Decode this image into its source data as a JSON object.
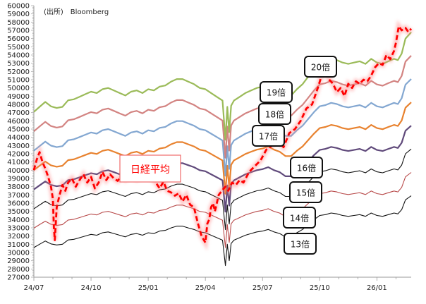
{
  "chart_data": {
    "type": "line",
    "title": "",
    "source_note": "(出所)　Bloomberg",
    "xlabel": "",
    "ylabel": "",
    "ylim": [
      27000,
      60000
    ],
    "ytick_step": 1000,
    "yticks": [
      "27000",
      "28000",
      "29000",
      "30000",
      "31000",
      "32000",
      "33000",
      "34000",
      "35000",
      "36000",
      "37000",
      "38000",
      "39000",
      "40000",
      "41000",
      "42000",
      "43000",
      "44000",
      "45000",
      "46000",
      "47000",
      "48000",
      "49000",
      "50000",
      "51000",
      "52000",
      "53000",
      "54000",
      "55000",
      "56000",
      "57000",
      "58000",
      "59000",
      "60000"
    ],
    "x_unit": "months since 2024-07",
    "xlim": [
      0,
      19.8
    ],
    "xticks": [
      {
        "m": 0,
        "label": "24/07"
      },
      {
        "m": 3,
        "label": "24/10"
      },
      {
        "m": 6,
        "label": "25/01"
      },
      {
        "m": 9,
        "label": "25/04"
      },
      {
        "m": 12,
        "label": "25/07"
      },
      {
        "m": 15,
        "label": "25/10"
      },
      {
        "m": 18,
        "label": "26/01"
      }
    ],
    "grid": false,
    "per_base": {
      "name": "EPS (implied by 13x band)",
      "x": [
        0,
        0.3,
        0.6,
        0.9,
        1.2,
        1.5,
        1.8,
        2.1,
        2.4,
        2.7,
        3.0,
        3.3,
        3.6,
        3.9,
        4.2,
        4.5,
        4.8,
        5.1,
        5.4,
        5.7,
        6.0,
        6.3,
        6.6,
        6.9,
        7.2,
        7.5,
        7.8,
        8.1,
        8.4,
        8.7,
        9.0,
        9.3,
        9.6,
        9.9,
        10.05,
        10.15,
        10.25,
        10.35,
        10.5,
        10.8,
        11.1,
        11.4,
        11.7,
        12.0,
        12.3,
        12.6,
        12.9,
        13.2,
        13.5,
        13.8,
        14.1,
        14.4,
        14.7,
        15.0,
        15.3,
        15.6,
        15.9,
        16.2,
        16.5,
        16.8,
        17.1,
        17.4,
        17.7,
        18.0,
        18.3,
        18.6,
        18.9,
        19.1,
        19.3,
        19.5,
        19.8
      ],
      "values": [
        2354,
        2385,
        2415,
        2388,
        2378,
        2385,
        2425,
        2431,
        2446,
        2462,
        2477,
        2469,
        2492,
        2500,
        2485,
        2469,
        2454,
        2477,
        2485,
        2469,
        2492,
        2485,
        2508,
        2515,
        2538,
        2554,
        2554,
        2538,
        2523,
        2500,
        2492,
        2469,
        2446,
        2423,
        2185,
        2385,
        2231,
        2392,
        2423,
        2446,
        2469,
        2485,
        2500,
        2508,
        2523,
        2500,
        2485,
        2454,
        2454,
        2492,
        2523,
        2569,
        2615,
        2654,
        2662,
        2677,
        2669,
        2654,
        2646,
        2654,
        2662,
        2646,
        2677,
        2654,
        2646,
        2662,
        2677,
        2669,
        2708,
        2800,
        2838
      ]
    },
    "series": [
      {
        "name": "20倍",
        "multiple": 20,
        "color": "#9bbb59",
        "label": "20倍"
      },
      {
        "name": "19倍",
        "multiple": 19,
        "color": "#c0504d",
        "label": "19倍",
        "opacity": 0.7
      },
      {
        "name": "18倍",
        "multiple": 18,
        "color": "#4f81bd",
        "label": "18倍",
        "opacity": 0.7
      },
      {
        "name": "17倍",
        "multiple": 17,
        "color": "#e46c0a",
        "label": "17倍",
        "opacity": 0.85
      },
      {
        "name": "16倍",
        "multiple": 16,
        "color": "#604a7b",
        "label": "16倍"
      },
      {
        "name": "15倍",
        "multiple": 15,
        "color": "#111111",
        "label": "15倍"
      },
      {
        "name": "14倍",
        "multiple": 14,
        "color": "#b84a4a",
        "label": "14倍"
      },
      {
        "name": "13倍",
        "multiple": 13,
        "color": "#111111",
        "label": "13倍"
      }
    ],
    "nikkei": {
      "name": "日経平均",
      "label": "日経平均",
      "color": "#ff0000",
      "x": [
        0,
        0.15,
        0.3,
        0.45,
        0.6,
        0.75,
        0.9,
        1.0,
        1.05,
        1.1,
        1.2,
        1.35,
        1.5,
        1.65,
        1.8,
        2.0,
        2.2,
        2.4,
        2.6,
        2.8,
        3.0,
        3.2,
        3.4,
        3.6,
        3.8,
        4.0,
        4.2,
        4.4,
        4.6,
        4.8,
        5.0,
        5.2,
        5.4,
        5.6,
        5.8,
        6.0,
        6.2,
        6.4,
        6.6,
        6.8,
        7.0,
        7.2,
        7.4,
        7.6,
        7.8,
        8.0,
        8.2,
        8.4,
        8.6,
        8.8,
        9.0,
        9.1,
        9.2,
        9.3,
        9.4,
        9.5,
        9.7,
        9.9,
        10.05,
        10.2,
        10.4,
        10.6,
        10.8,
        11.0,
        11.3,
        11.6,
        11.9,
        12.2,
        12.5,
        12.8,
        13.1,
        13.4,
        13.7,
        14.0,
        14.3,
        14.6,
        14.9,
        15.1,
        15.3,
        15.5,
        15.7,
        15.9,
        16.1,
        16.3,
        16.5,
        16.7,
        16.9,
        17.1,
        17.3,
        17.5,
        17.7,
        17.9,
        18.1,
        18.3,
        18.5,
        18.7,
        18.9,
        19.0,
        19.15,
        19.3,
        19.5,
        19.65,
        19.8
      ],
      "values": [
        40000,
        41300,
        42200,
        41000,
        40200,
        39200,
        38000,
        36500,
        33000,
        31500,
        35500,
        37000,
        38200,
        37500,
        38500,
        39000,
        38000,
        38800,
        39500,
        38500,
        39200,
        37800,
        38500,
        39800,
        38800,
        39500,
        39000,
        38700,
        39400,
        38900,
        39600,
        39200,
        38900,
        39500,
        39300,
        39800,
        39000,
        38500,
        37800,
        38600,
        37500,
        37300,
        36900,
        37200,
        36200,
        37000,
        35800,
        35500,
        33600,
        32000,
        31200,
        33500,
        34000,
        35500,
        36000,
        35000,
        37000,
        37600,
        38000,
        37500,
        38500,
        38200,
        38800,
        38500,
        39800,
        40500,
        41200,
        42500,
        43000,
        43500,
        42800,
        44500,
        45000,
        46000,
        47500,
        48000,
        50000,
        51500,
        52000,
        51000,
        50500,
        49500,
        50000,
        49000,
        50500,
        50000,
        50800,
        50500,
        51000,
        50800,
        51500,
        52500,
        53000,
        52800,
        54000,
        53500,
        54500,
        55500,
        57500,
        57000,
        57300,
        56800,
        57200
      ]
    },
    "annotations": [
      {
        "text": "日経平均",
        "target": "nikkei"
      },
      {
        "text": "20倍",
        "target": "20倍"
      },
      {
        "text": "19倍",
        "target": "19倍"
      },
      {
        "text": "18倍",
        "target": "18倍"
      },
      {
        "text": "17倍",
        "target": "17倍"
      },
      {
        "text": "16倍",
        "target": "16倍"
      },
      {
        "text": "15倍",
        "target": "15倍"
      },
      {
        "text": "14倍",
        "target": "14倍"
      },
      {
        "text": "13倍",
        "target": "13倍"
      }
    ]
  }
}
